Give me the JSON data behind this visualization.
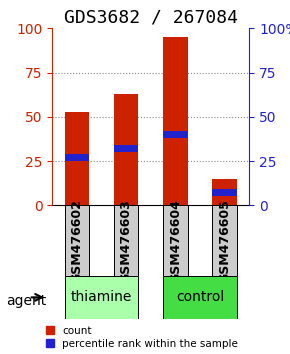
{
  "title": "GDS3682 / 267084",
  "samples": [
    "GSM476602",
    "GSM476603",
    "GSM476604",
    "GSM476605"
  ],
  "count_values": [
    53,
    63,
    95,
    15
  ],
  "percentile_values": [
    27,
    32,
    40,
    7
  ],
  "ylim": [
    0,
    100
  ],
  "bar_width": 0.5,
  "bar_color_red": "#cc2200",
  "bar_color_blue": "#2222cc",
  "groups": [
    {
      "label": "thiamine",
      "samples": [
        0,
        1
      ],
      "color": "#aaffaa"
    },
    {
      "label": "control",
      "samples": [
        2,
        3
      ],
      "color": "#44dd44"
    }
  ],
  "left_yticks": [
    0,
    25,
    50,
    75,
    100
  ],
  "right_yticks": [
    0,
    25,
    50,
    75,
    100
  ],
  "right_yticklabels": [
    "0",
    "25",
    "50",
    "75",
    "100%"
  ],
  "left_tick_color": "#cc2200",
  "right_tick_color": "#2222cc",
  "grid_color": "#888888",
  "background_color": "#ffffff",
  "plot_bg_color": "#ffffff",
  "sample_box_color": "#cccccc",
  "legend_count_label": "count",
  "legend_percentile_label": "percentile rank within the sample",
  "agent_label": "agent",
  "title_fontsize": 13,
  "tick_fontsize": 10,
  "label_fontsize": 10,
  "sample_fontsize": 9
}
